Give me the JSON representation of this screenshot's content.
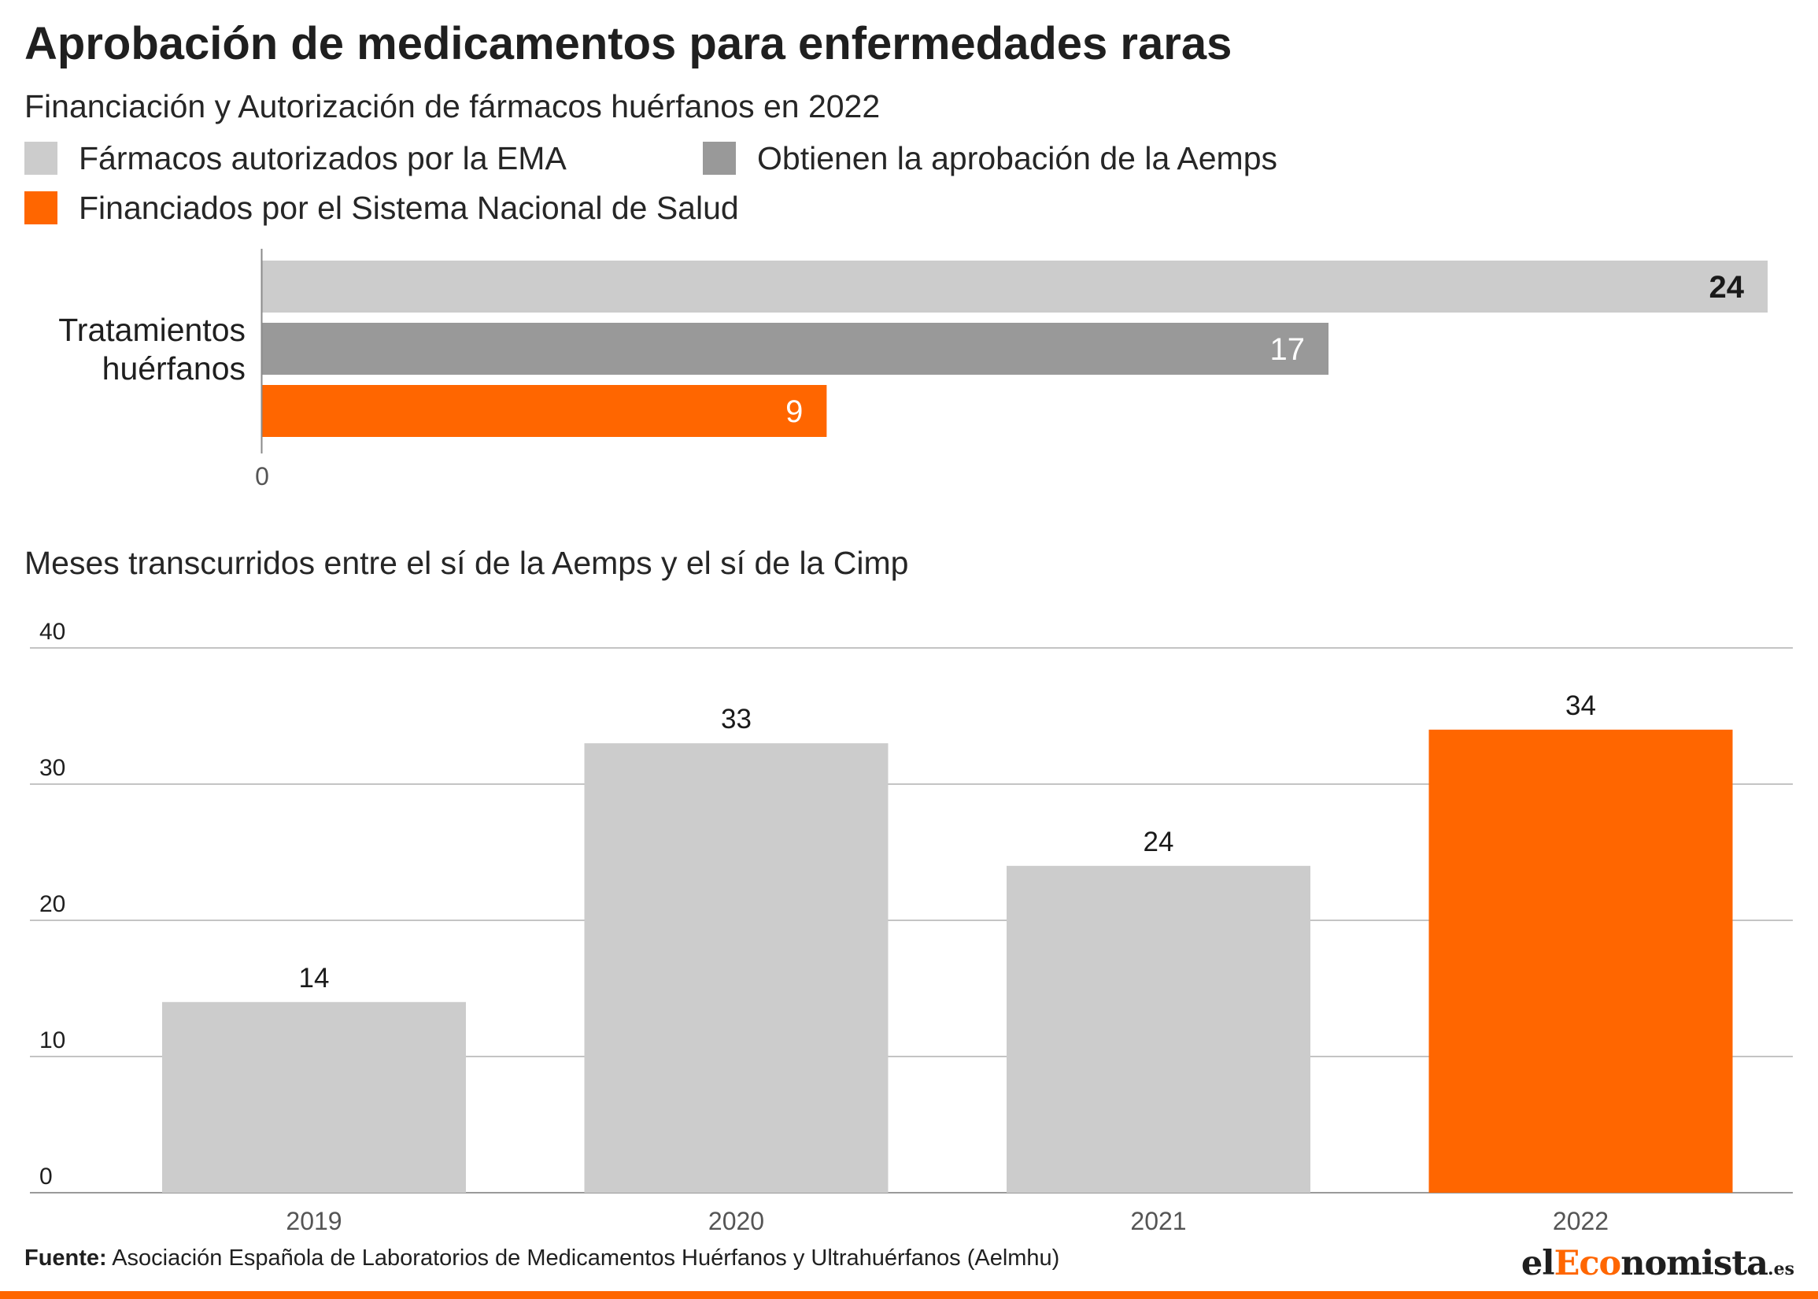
{
  "title": "Aprobación de medicamentos para enfermedades raras",
  "subtitle": "Financiación y Autorización de fármacos huérfanos en 2022",
  "legend": [
    {
      "label": "Fármacos autorizados por la EMA",
      "color": "#cccccc"
    },
    {
      "label": "Obtienen la aprobación de la Aemps",
      "color": "#999999"
    },
    {
      "label": "Financiados por el Sistema Nacional de Salud",
      "color": "#ff6600"
    }
  ],
  "section2_title": "Meses transcurridos entre el sí de la Aemps y el sí de la Cimp",
  "source": {
    "label": "Fuente:",
    "text": "Asociación Española de Laboratorios de Medicamentos Huérfanos y Ultrahuérfanos (Aelmhu)"
  },
  "logo": {
    "part1": "el",
    "part2": "Eco",
    "part3": "nomista",
    "tld": ".es"
  },
  "chart_data": [
    {
      "type": "bar",
      "orientation": "horizontal",
      "categories": [
        "Tratamientos huérfanos"
      ],
      "series": [
        {
          "name": "Fármacos autorizados por la EMA",
          "values": [
            24
          ],
          "color": "#cccccc"
        },
        {
          "name": "Obtienen la aprobación de la Aemps",
          "values": [
            17
          ],
          "color": "#999999"
        },
        {
          "name": "Financiados por el Sistema Nacional de Salud",
          "values": [
            9
          ],
          "color": "#ff6600"
        }
      ],
      "xlim": [
        0,
        24
      ],
      "xticks": [
        "0"
      ],
      "data_labels": [
        "24",
        "17",
        "9"
      ],
      "legend_position": "top"
    },
    {
      "type": "bar",
      "orientation": "vertical",
      "title": "Meses transcurridos entre el sí de la Aemps y el sí de la Cimp",
      "categories": [
        "2019",
        "2020",
        "2021",
        "2022"
      ],
      "values": [
        14,
        33,
        24,
        34
      ],
      "colors": [
        "#cccccc",
        "#cccccc",
        "#cccccc",
        "#ff6600"
      ],
      "ylim": [
        0,
        40
      ],
      "yticks": [
        "0",
        "10",
        "20",
        "30",
        "40"
      ],
      "grid": true
    }
  ]
}
